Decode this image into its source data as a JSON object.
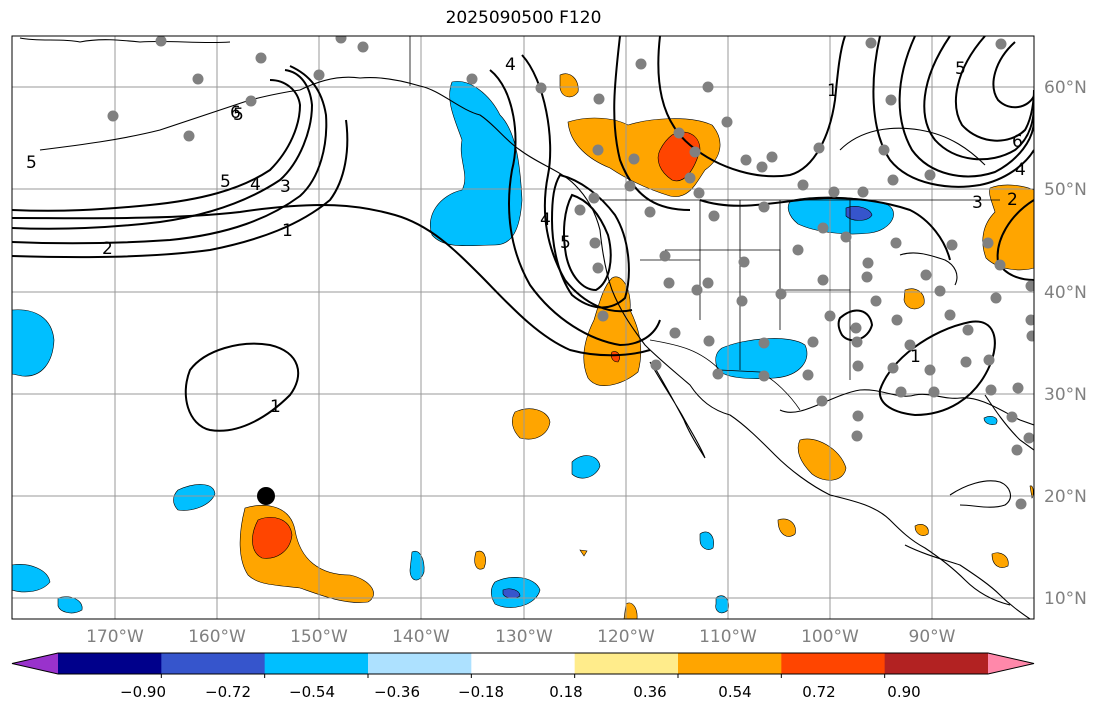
{
  "title": "2025090500 F120",
  "map": {
    "lon_ticks": [
      "170°W",
      "160°W",
      "150°W",
      "140°W",
      "130°W",
      "120°W",
      "110°W",
      "100°W",
      "90°W"
    ],
    "lat_ticks": [
      "60°N",
      "50°N",
      "40°N",
      "30°N",
      "20°N",
      "10°N"
    ],
    "contour_labels": [
      "5",
      "5",
      "4",
      "3",
      "2",
      "1",
      "1",
      "4",
      "5",
      "4",
      "5",
      "1",
      "6",
      "4",
      "3",
      "2",
      "5",
      "6",
      "1"
    ]
  },
  "colorbar": {
    "ticks": [
      "−0.90",
      "−0.72",
      "−0.54",
      "−0.36",
      "−0.18",
      "0.18",
      "0.36",
      "0.54",
      "0.72",
      "0.90"
    ],
    "colors": [
      "#9932CC",
      "#00008B",
      "#3655CC",
      "#00BFFF",
      "#ADE1FF",
      "#FFFFFF",
      "#FFEC8B",
      "#FFA500",
      "#FF4500",
      "#B22222",
      "#FF88AA"
    ]
  }
}
